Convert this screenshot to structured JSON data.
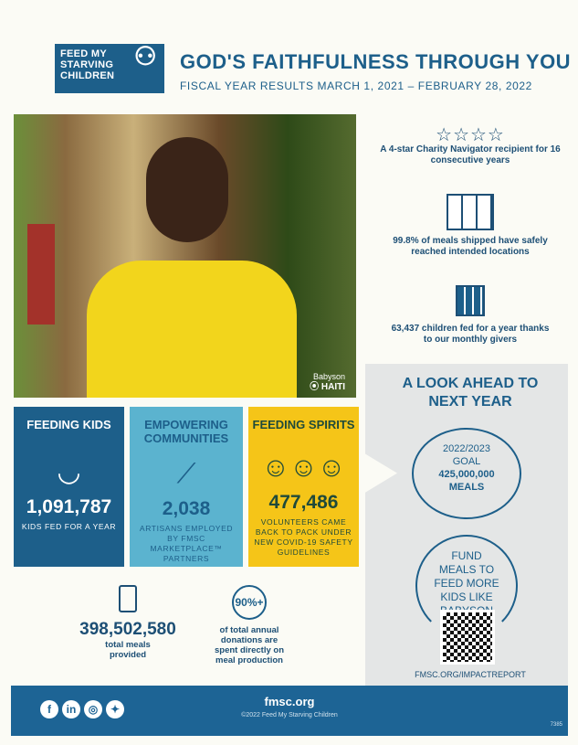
{
  "header": {
    "logo_text": "FEED MY STARVING CHILDREN",
    "title": "GOD'S FAITHFULNESS THROUGH YOU",
    "subtitle": "FISCAL YEAR RESULTS MARCH 1, 2021 – FEBRUARY 28, 2022"
  },
  "photo": {
    "name": "Babyson",
    "location": "HAITI"
  },
  "features": [
    {
      "icon": "four-stars-icon",
      "text": "A 4-star Charity Navigator recipient for 16 consecutive years"
    },
    {
      "icon": "pallet-boxes-icon",
      "text": "99.8% of meals shipped have safely reached intended locations"
    },
    {
      "icon": "calendar-icon",
      "text": "63,437 children fed for a year thanks to our monthly givers"
    }
  ],
  "boxes": [
    {
      "title": "FEEDING KIDS",
      "icon": "bowl-icon",
      "number": "1,091,787",
      "desc": "KIDS FED FOR A YEAR",
      "color": "#1d5f8a"
    },
    {
      "title": "EMPOWERING COMMUNITIES",
      "icon": "needle-thread-icon",
      "number": "2,038",
      "desc": "ARTISANS EMPLOYED BY FMSC MARKETPLACE™ PARTNERS",
      "color": "#5bb3cf"
    },
    {
      "title": "FEEDING SPIRITS",
      "icon": "people-raised-hand-icon",
      "number": "477,486",
      "desc": "VOLUNTEERS CAME BACK TO PACK UNDER NEW COVID-19 SAFETY GUIDELINES",
      "color": "#f5c518"
    }
  ],
  "stats": [
    {
      "icon": "meal-bag-icon",
      "number": "398,502,580",
      "desc": "total meals provided"
    },
    {
      "badge": "90%+",
      "desc": "of total annual donations are spent directly on meal production"
    }
  ],
  "lookahead": {
    "title": "A LOOK AHEAD TO NEXT YEAR",
    "goal_year": "2022/2023",
    "goal_label": "GOAL",
    "goal_number": "425,000,000",
    "goal_unit": "MEALS",
    "cta": "FUND MEALS TO FEED MORE KIDS LIKE BABYSON",
    "url": "FMSC.ORG/IMPACTREPORT"
  },
  "footer": {
    "site": "fmsc.org",
    "copyright": "©2022 Feed My Starving Children",
    "code": "7385",
    "social": [
      "facebook-icon",
      "linkedin-icon",
      "instagram-icon",
      "twitter-icon"
    ]
  }
}
